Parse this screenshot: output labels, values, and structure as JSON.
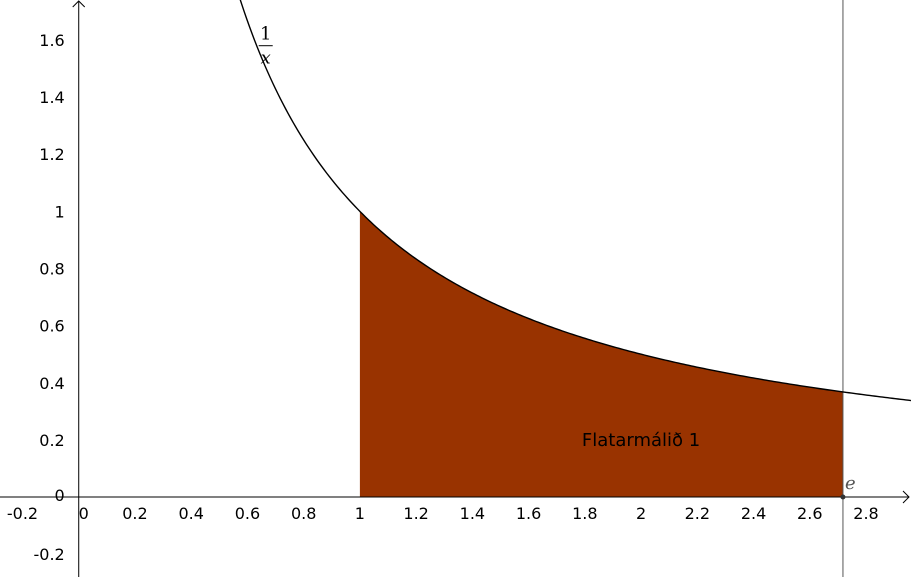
{
  "chart_data": {
    "type": "line",
    "title": "",
    "xlabel": "",
    "ylabel": "",
    "xlim": [
      -0.28,
      2.96
    ],
    "ylim": [
      -0.28,
      1.74
    ],
    "grid": false,
    "x_ticks": [
      -0.2,
      0,
      0.2,
      0.4,
      0.6,
      0.8,
      1,
      1.2,
      1.4,
      1.6,
      1.8,
      2,
      2.2,
      2.4,
      2.6,
      2.8
    ],
    "x_tick_labels": [
      "-0.2",
      "0",
      "0.2",
      "0.4",
      "0.6",
      "0.8",
      "1",
      "1.2",
      "1.4",
      "1.6",
      "1.8",
      "2",
      "2.2",
      "2.4",
      "2.6",
      "2.8"
    ],
    "y_ticks": [
      -0.2,
      0,
      0.2,
      0.4,
      0.6,
      0.8,
      1,
      1.2,
      1.4,
      1.6
    ],
    "y_tick_labels": [
      "-0.2",
      "0",
      "0.2",
      "0.4",
      "0.6",
      "0.8",
      "1",
      "1.2",
      "1.4",
      "1.6"
    ],
    "curve": {
      "function": "1/x",
      "label_numerator": "1",
      "label_denominator": "x",
      "x_start": 0.57,
      "x_end": 2.96,
      "color": "#000000"
    },
    "shaded_region": {
      "x_from": 1,
      "x_to": 2.718,
      "label": "Flatarmálið 1",
      "color": "#993300"
    },
    "vertical_line": {
      "x": 2.718
    },
    "point": {
      "x": 2.718,
      "y": 0,
      "label": "e"
    }
  }
}
